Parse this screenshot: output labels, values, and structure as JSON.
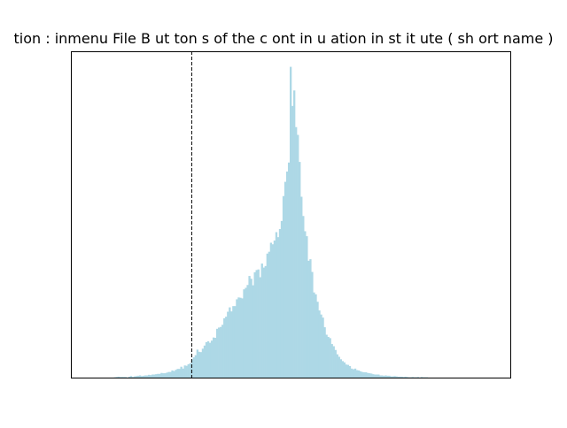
{
  "chart_data": {
    "type": "bar",
    "title": "tion : inmenu  File B ut ton s of the c ont in u ation in st it ute ( sh ort name )",
    "xlabel": "",
    "ylabel": "",
    "show_ticks": false,
    "grid": false,
    "legend": "none",
    "colors": {
      "bars": "#add8e6",
      "axis": "#000000",
      "reference_line": "#000000"
    },
    "x_range": [
      0,
      100
    ],
    "y_range": [
      0,
      1.05
    ],
    "reference_line_x": 27.5,
    "bin_count": 240,
    "bins": {
      "start": 0,
      "end": 100,
      "values": [
        0.0,
        0.0,
        0.0,
        0.0,
        0.0,
        0.0,
        0.0,
        0.0,
        0.0,
        0.0,
        0.0,
        0.0,
        0.0,
        0.0,
        0.0,
        0.0,
        0.0,
        0.0,
        0.0,
        0.0,
        0.0,
        0.0,
        0.0,
        0.0,
        0.001,
        0.002,
        0.003,
        0.002,
        0.002,
        0.002,
        0.002,
        0.0,
        0.003,
        0.005,
        0.002,
        0.004,
        0.005,
        0.006,
        0.007,
        0.005,
        0.006,
        0.007,
        0.007,
        0.009,
        0.008,
        0.01,
        0.01,
        0.011,
        0.012,
        0.012,
        0.015,
        0.014,
        0.014,
        0.016,
        0.018,
        0.018,
        0.023,
        0.021,
        0.025,
        0.028,
        0.028,
        0.035,
        0.029,
        0.039,
        0.038,
        0.043,
        0.046,
        0.058,
        0.065,
        0.072,
        0.09,
        0.083,
        0.082,
        0.093,
        0.103,
        0.114,
        0.117,
        0.112,
        0.119,
        0.129,
        0.128,
        0.157,
        0.161,
        0.163,
        0.17,
        0.191,
        0.196,
        0.212,
        0.226,
        0.213,
        0.23,
        0.23,
        0.252,
        0.258,
        0.257,
        0.255,
        0.284,
        0.289,
        0.298,
        0.327,
        0.318,
        0.297,
        0.339,
        0.346,
        0.348,
        0.323,
        0.367,
        0.354,
        0.359,
        0.399,
        0.405,
        0.434,
        0.429,
        0.441,
        0.468,
        0.452,
        0.478,
        0.504,
        0.584,
        0.63,
        0.663,
        0.692,
        1.0,
        0.874,
        0.924,
        0.806,
        0.781,
        0.694,
        0.582,
        0.52,
        0.471,
        0.455,
        0.376,
        0.381,
        0.34,
        0.274,
        0.268,
        0.244,
        0.216,
        0.203,
        0.193,
        0.162,
        0.138,
        0.131,
        0.127,
        0.108,
        0.101,
        0.089,
        0.075,
        0.067,
        0.059,
        0.053,
        0.049,
        0.042,
        0.041,
        0.037,
        0.029,
        0.027,
        0.029,
        0.024,
        0.023,
        0.02,
        0.018,
        0.017,
        0.017,
        0.015,
        0.014,
        0.013,
        0.011,
        0.01,
        0.01,
        0.01,
        0.007,
        0.007,
        0.006,
        0.007,
        0.006,
        0.006,
        0.004,
        0.004,
        0.005,
        0.004,
        0.003,
        0.003,
        0.003,
        0.002,
        0.003,
        0.002,
        0.001,
        0.001,
        0.002,
        0.001,
        0.001,
        0.002,
        0.0,
        0.002,
        0.001,
        0.001,
        0.001,
        0.0,
        0.0,
        0.0,
        0.0,
        0.0,
        0.0,
        0.0,
        0.0,
        0.0,
        0.0,
        0.0,
        0.0,
        0.0,
        0.0,
        0.0,
        0.0,
        0.0,
        0.0,
        0.0,
        0.0,
        0.0,
        0.0,
        0.0,
        0.0,
        0.0,
        0.0,
        0.0,
        0.0,
        0.0,
        0.0,
        0.0,
        0.0,
        0.0,
        0.0,
        0.0,
        0.0,
        0.0,
        0.0,
        0.0,
        0.0,
        0.0,
        0.0,
        0.0,
        0.0,
        0.0,
        0.0
      ]
    }
  }
}
